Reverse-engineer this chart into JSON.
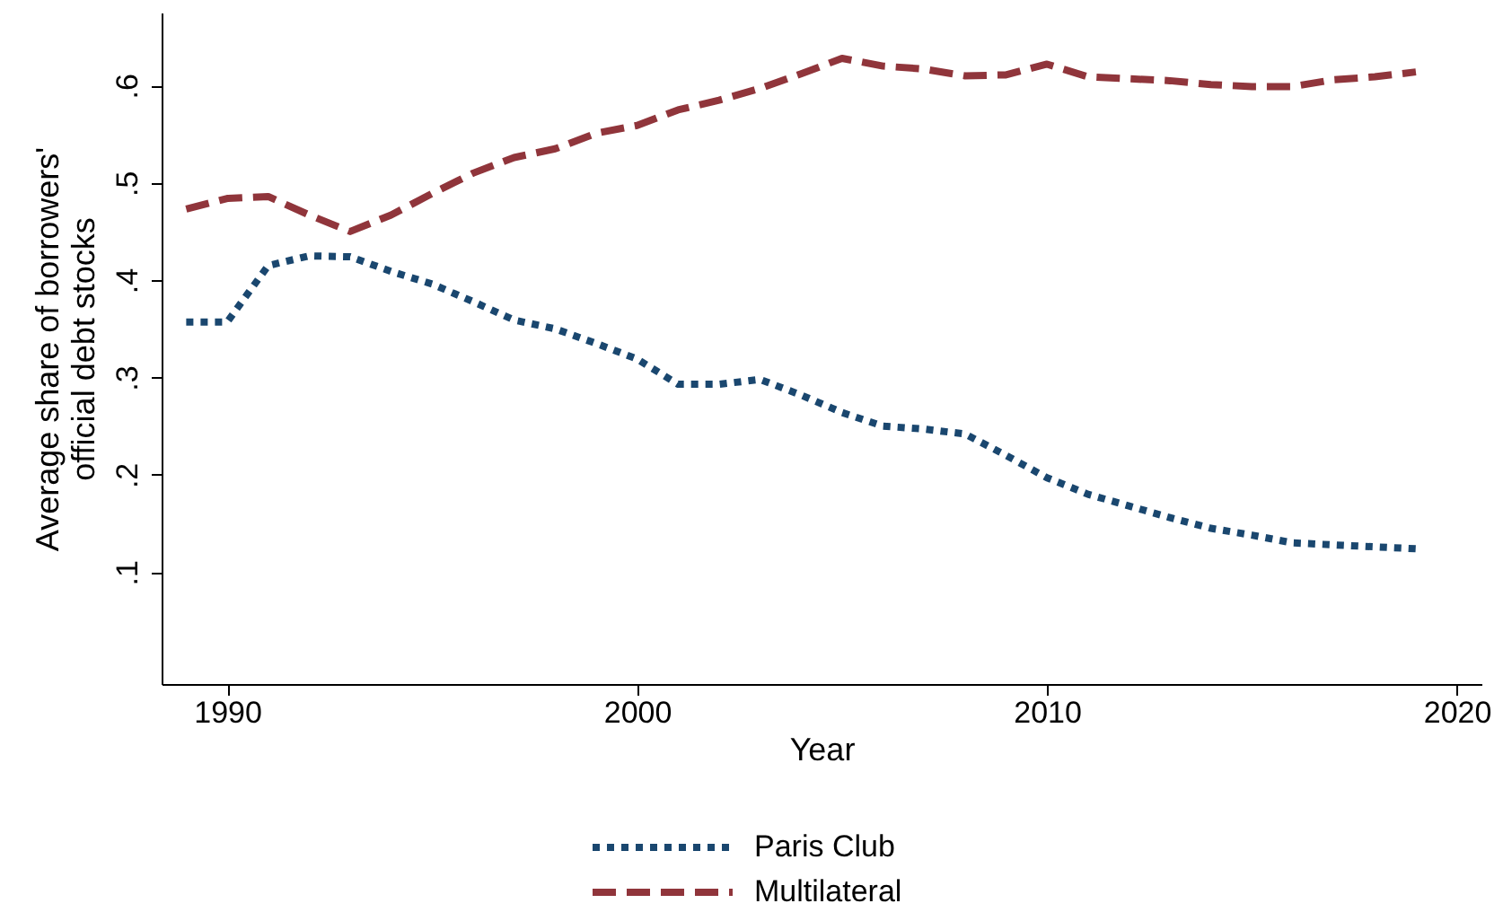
{
  "chart_data": {
    "type": "line",
    "xlabel": "Year",
    "ylabel": "Average share of borrowers'\nofficial debt stocks",
    "x": [
      1989,
      1990,
      1991,
      1992,
      1993,
      1994,
      1995,
      1996,
      1997,
      1998,
      1999,
      2000,
      2001,
      2002,
      2003,
      2004,
      2005,
      2006,
      2007,
      2008,
      2009,
      2010,
      2011,
      2012,
      2013,
      2014,
      2015,
      2016,
      2017,
      2018,
      2019
    ],
    "series": [
      {
        "name": "Paris Club",
        "color": "#1a476f",
        "line_style": "dotted",
        "values": [
          0.357,
          0.357,
          0.415,
          0.425,
          0.424,
          0.409,
          0.396,
          0.378,
          0.359,
          0.35,
          0.335,
          0.319,
          0.293,
          0.293,
          0.298,
          0.282,
          0.264,
          0.25,
          0.247,
          0.242,
          0.22,
          0.197,
          0.18,
          0.168,
          0.156,
          0.145,
          0.138,
          0.13,
          0.128,
          0.126,
          0.124
        ]
      },
      {
        "name": "Multilateral",
        "color": "#90353b",
        "line_style": "dashed",
        "values": [
          0.473,
          0.484,
          0.486,
          0.467,
          0.45,
          0.467,
          0.489,
          0.51,
          0.526,
          0.535,
          0.551,
          0.559,
          0.575,
          0.585,
          0.597,
          0.612,
          0.628,
          0.62,
          0.617,
          0.61,
          0.611,
          0.622,
          0.609,
          0.607,
          0.605,
          0.601,
          0.599,
          0.599,
          0.606,
          0.609,
          0.614
        ]
      }
    ],
    "xlim": [
      1988.4,
      2020.6
    ],
    "ylim": [
      -0.015,
      0.675
    ],
    "xticks": [
      1990,
      2000,
      2010,
      2020
    ],
    "yticks": [
      {
        "value": 0.1,
        "label": ".1"
      },
      {
        "value": 0.2,
        "label": ".2"
      },
      {
        "value": 0.3,
        "label": ".3"
      },
      {
        "value": 0.4,
        "label": ".4"
      },
      {
        "value": 0.5,
        "label": ".5"
      },
      {
        "value": 0.6,
        "label": ".6"
      }
    ],
    "legend": "bottom"
  }
}
